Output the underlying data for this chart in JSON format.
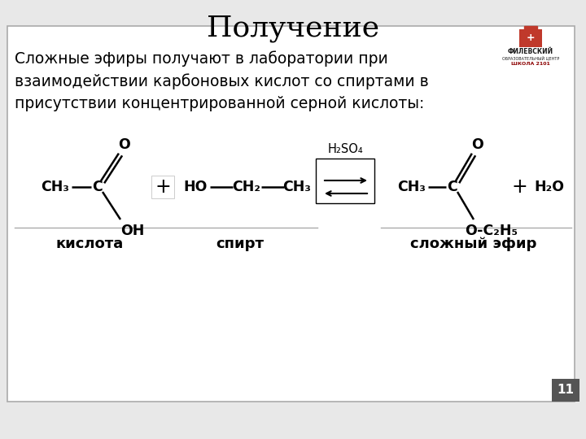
{
  "title": "Получение",
  "title_fontsize": 26,
  "bg_color": "#e8e8e8",
  "box_bg": "#ffffff",
  "box_border": "#aaaaaa",
  "text_color": "#000000",
  "desc_text": "Сложные эфиры получают в лаборатории при\nвзаимодействии карбоновых кислот со спиртами в\nприсутствии концентрированной серной кислоты:",
  "desc_fontsize": 13.5,
  "page_number": "11"
}
